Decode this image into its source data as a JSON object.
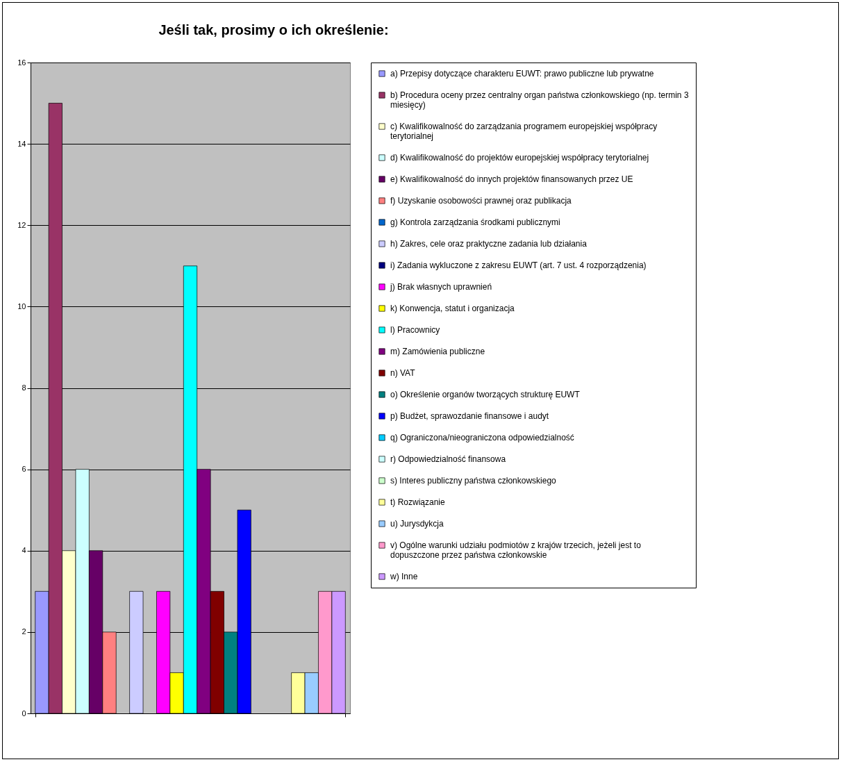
{
  "chart_data": {
    "type": "bar",
    "title": "Jeśli tak, prosimy o ich określenie:",
    "categories": [
      null
    ],
    "ylim": [
      0,
      16
    ],
    "yticks": [
      0,
      2,
      4,
      6,
      8,
      10,
      12,
      14,
      16
    ],
    "grid": "y",
    "legend": "right",
    "tick_labels": "y",
    "series": [
      {
        "name": "a) Przepisy dotyczące charakteru EUWT: prawo publiczne lub prywatne",
        "color": "#9999ff",
        "values": [
          3
        ]
      },
      {
        "name": "b) Procedura oceny przez centralny organ państwa członkowskiego (np. termin 3 miesięcy)",
        "color": "#993366",
        "values": [
          15
        ]
      },
      {
        "name": "c) Kwalifikowalność do zarządzania programem europejskiej współpracy terytorialnej",
        "color": "#ffffcc",
        "values": [
          4
        ]
      },
      {
        "name": "d) Kwalifikowalność do projektów europejskiej współpracy terytorialnej",
        "color": "#ccffff",
        "values": [
          6
        ]
      },
      {
        "name": "e) Kwalifikowalność do innych projektów finansowanych przez UE",
        "color": "#660066",
        "values": [
          4
        ]
      },
      {
        "name": "f) Uzyskanie osobowości prawnej oraz publikacja",
        "color": "#ff8080",
        "values": [
          2
        ]
      },
      {
        "name": "g) Kontrola zarządzania środkami publicznymi",
        "color": "#0066cc",
        "values": [
          0
        ]
      },
      {
        "name": "h) Zakres, cele oraz praktyczne zadania lub działania",
        "color": "#ccccff",
        "values": [
          3
        ]
      },
      {
        "name": "i) Zadania wykluczone z zakresu EUWT (art. 7 ust. 4 rozporządzenia)",
        "color": "#000080",
        "values": [
          0
        ]
      },
      {
        "name": "j) Brak własnych uprawnień",
        "color": "#ff00ff",
        "values": [
          3
        ]
      },
      {
        "name": "k) Konwencja, statut i organizacja",
        "color": "#ffff00",
        "values": [
          1
        ]
      },
      {
        "name": "l) Pracownicy",
        "color": "#00ffff",
        "values": [
          11
        ]
      },
      {
        "name": "m) Zamówienia publiczne",
        "color": "#800080",
        "values": [
          6
        ]
      },
      {
        "name": "n) VAT",
        "color": "#800000",
        "values": [
          3
        ]
      },
      {
        "name": "o) Określenie organów tworzących strukturę EUWT",
        "color": "#008080",
        "values": [
          2
        ]
      },
      {
        "name": "p) Budżet, sprawozdanie finansowe i audyt",
        "color": "#0000ff",
        "values": [
          5
        ]
      },
      {
        "name": "q) Ograniczona/nieograniczona odpowiedzialność",
        "color": "#00ccff",
        "values": [
          0
        ]
      },
      {
        "name": "r) Odpowiedzialność finansowa",
        "color": "#ccfffe",
        "values": [
          0
        ]
      },
      {
        "name": "s) Interes publiczny państwa członkowskiego",
        "color": "#ccffcc",
        "values": [
          0
        ]
      },
      {
        "name": "t) Rozwiązanie",
        "color": "#ffff99",
        "values": [
          1
        ]
      },
      {
        "name": "u) Jurysdykcja",
        "color": "#99ccff",
        "values": [
          1
        ]
      },
      {
        "name": "v) Ogólne warunki udziału podmiotów z krajów trzecich, jeżeli jest to dopuszczone przez państwa członkowskie",
        "color": "#ff99cc",
        "values": [
          3
        ]
      },
      {
        "name": "w) Inne",
        "color": "#cc99ff",
        "values": [
          3
        ]
      }
    ]
  }
}
